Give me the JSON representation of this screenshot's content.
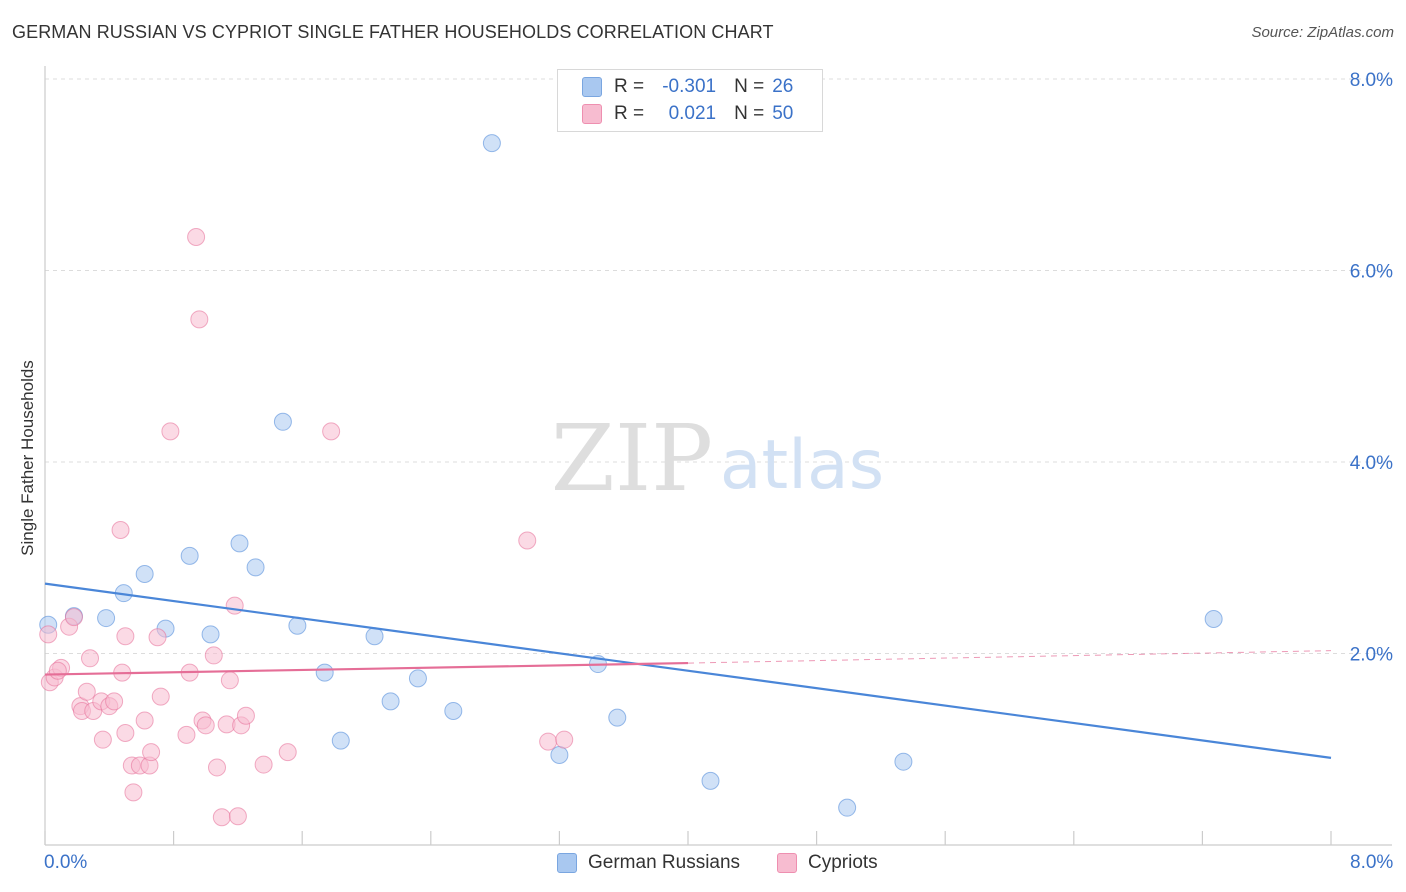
{
  "title": "GERMAN RUSSIAN VS CYPRIOT SINGLE FATHER HOUSEHOLDS CORRELATION CHART",
  "source": "Source: ZipAtlas.com",
  "watermark": {
    "zip": "ZIP",
    "atlas": "atlas"
  },
  "legend": {
    "r_label": "R =",
    "n_label": "N =",
    "rows": [
      {
        "name": "German Russians",
        "r": "-0.301",
        "n": "26",
        "color": "#a9c8f0",
        "border": "#7aa6e0"
      },
      {
        "name": "Cypriots",
        "r": "0.021",
        "n": "50",
        "color": "#f7bcd0",
        "border": "#ee8fb0"
      }
    ]
  },
  "chart_data": {
    "type": "scatter",
    "title": "GERMAN RUSSIAN VS CYPRIOT SINGLE FATHER HOUSEHOLDS CORRELATION CHART",
    "xlabel": "",
    "ylabel": "Single Father Households",
    "xlim": [
      0,
      8
    ],
    "ylim": [
      0,
      8
    ],
    "x_tick_labels": [
      "0.0%",
      "8.0%"
    ],
    "y_ticks": [
      2,
      4,
      6,
      8
    ],
    "y_tick_labels": [
      "2.0%",
      "4.0%",
      "6.0%",
      "8.0%"
    ],
    "grid": true,
    "series": [
      {
        "name": "German Russians",
        "color": "#4a86d8",
        "fill": "#a9c8f0",
        "trend": {
          "x": [
            0,
            8
          ],
          "y": [
            2.73,
            0.91
          ]
        },
        "points": [
          [
            0.02,
            2.3
          ],
          [
            0.38,
            2.37
          ],
          [
            0.49,
            2.63
          ],
          [
            0.62,
            2.83
          ],
          [
            0.75,
            2.26
          ],
          [
            0.9,
            3.02
          ],
          [
            1.03,
            2.2
          ],
          [
            1.21,
            3.15
          ],
          [
            1.31,
            2.9
          ],
          [
            1.48,
            4.42
          ],
          [
            1.57,
            2.29
          ],
          [
            1.74,
            1.8
          ],
          [
            1.84,
            1.09
          ],
          [
            2.05,
            2.18
          ],
          [
            2.15,
            1.5
          ],
          [
            2.32,
            1.74
          ],
          [
            2.54,
            1.4
          ],
          [
            2.78,
            7.33
          ],
          [
            3.2,
            0.94
          ],
          [
            3.44,
            1.89
          ],
          [
            3.56,
            1.33
          ],
          [
            4.14,
            0.67
          ],
          [
            4.99,
            0.39
          ],
          [
            5.34,
            0.87
          ],
          [
            7.27,
            2.36
          ],
          [
            0.18,
            2.39
          ]
        ]
      },
      {
        "name": "Cypriots",
        "color": "#e56e97",
        "fill": "#f7bcd0",
        "trend": {
          "x": [
            0,
            4
          ],
          "y": [
            1.78,
            1.9
          ]
        },
        "trend_ext": {
          "x": [
            4,
            8
          ],
          "y": [
            1.9,
            2.03
          ]
        },
        "points": [
          [
            0.02,
            2.2
          ],
          [
            0.03,
            1.7
          ],
          [
            0.06,
            1.75
          ],
          [
            0.1,
            1.85
          ],
          [
            0.15,
            2.28
          ],
          [
            0.18,
            2.38
          ],
          [
            0.22,
            1.45
          ],
          [
            0.23,
            1.4
          ],
          [
            0.26,
            1.6
          ],
          [
            0.28,
            1.95
          ],
          [
            0.3,
            1.4
          ],
          [
            0.35,
            1.5
          ],
          [
            0.36,
            1.1
          ],
          [
            0.4,
            1.45
          ],
          [
            0.43,
            1.5
          ],
          [
            0.47,
            3.29
          ],
          [
            0.48,
            1.8
          ],
          [
            0.5,
            1.17
          ],
          [
            0.5,
            2.18
          ],
          [
            0.54,
            0.83
          ],
          [
            0.55,
            0.55
          ],
          [
            0.59,
            0.83
          ],
          [
            0.62,
            1.3
          ],
          [
            0.65,
            0.83
          ],
          [
            0.66,
            0.97
          ],
          [
            0.7,
            2.17
          ],
          [
            0.72,
            1.55
          ],
          [
            0.78,
            4.32
          ],
          [
            0.88,
            1.15
          ],
          [
            0.9,
            1.8
          ],
          [
            0.94,
            6.35
          ],
          [
            0.96,
            5.49
          ],
          [
            0.98,
            1.3
          ],
          [
            1.0,
            1.25
          ],
          [
            1.05,
            1.98
          ],
          [
            1.07,
            0.81
          ],
          [
            1.1,
            0.29
          ],
          [
            1.13,
            1.26
          ],
          [
            1.15,
            1.72
          ],
          [
            1.18,
            2.5
          ],
          [
            1.2,
            0.3
          ],
          [
            1.22,
            1.25
          ],
          [
            1.25,
            1.35
          ],
          [
            1.36,
            0.84
          ],
          [
            1.51,
            0.97
          ],
          [
            1.78,
            4.32
          ],
          [
            3.0,
            3.18
          ],
          [
            3.13,
            1.08
          ],
          [
            3.23,
            1.1
          ],
          [
            0.08,
            1.82
          ]
        ]
      }
    ]
  }
}
